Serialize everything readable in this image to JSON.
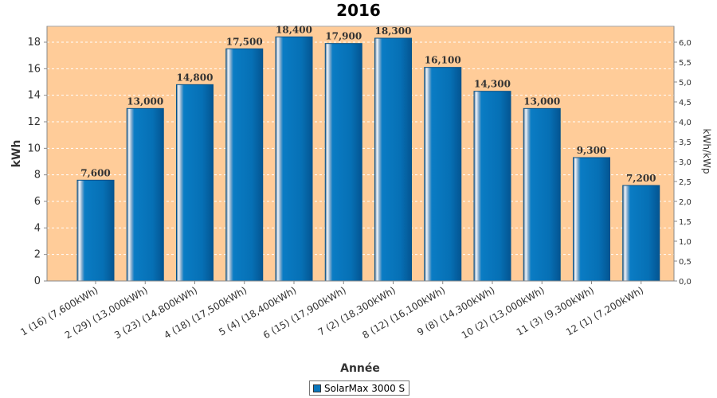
{
  "chart_data": {
    "type": "bar",
    "title": "2016",
    "xlabel": "Année",
    "ylabel": "kWh",
    "ylabel_right": "kWh/kWp",
    "ylim": [
      0,
      19.2
    ],
    "ylim_right": [
      0,
      6.4
    ],
    "yticks": [
      "0",
      "2",
      "4",
      "6",
      "8",
      "10",
      "12",
      "14",
      "16",
      "18"
    ],
    "yticks_right": [
      "0,0",
      "0,5",
      "1,0",
      "1,5",
      "2,0",
      "2,5",
      "3,0",
      "3,5",
      "4,0",
      "4,5",
      "5,0",
      "5,5",
      "6,0"
    ],
    "grid": true,
    "legend_position": "bottom",
    "categories": [
      "1 (16)  (7,600kWh)",
      "2 (29)  (13,000kWh)",
      "3 (23)  (14,800kWh)",
      "4 (18)  (17,500kWh)",
      "5 (4)  (18,400kWh)",
      "6 (15)  (17,900kWh)",
      "7 (2)  (18,300kWh)",
      "8 (12)  (16,100kWh)",
      "9 (8)  (14,300kWh)",
      "10 (2)  (13,000kWh)",
      "11 (3)  (9,300kWh)",
      "12 (1)  (7,200kWh)"
    ],
    "series": [
      {
        "name": "SolarMax 3000 S",
        "values": [
          7.6,
          13.0,
          14.8,
          17.5,
          18.4,
          17.9,
          18.3,
          16.1,
          14.3,
          13.0,
          9.3,
          7.2
        ],
        "labels": [
          "7,600",
          "13,000",
          "14,800",
          "17,500",
          "18,400",
          "17,900",
          "18,300",
          "16,100",
          "14,300",
          "13,000",
          "9,300",
          "7,200"
        ]
      }
    ],
    "colors": {
      "plot_background": "#FFCC99",
      "bar": "#0A76BC",
      "bar_dark": "#04518A",
      "grid": "#FFFFFF"
    }
  }
}
